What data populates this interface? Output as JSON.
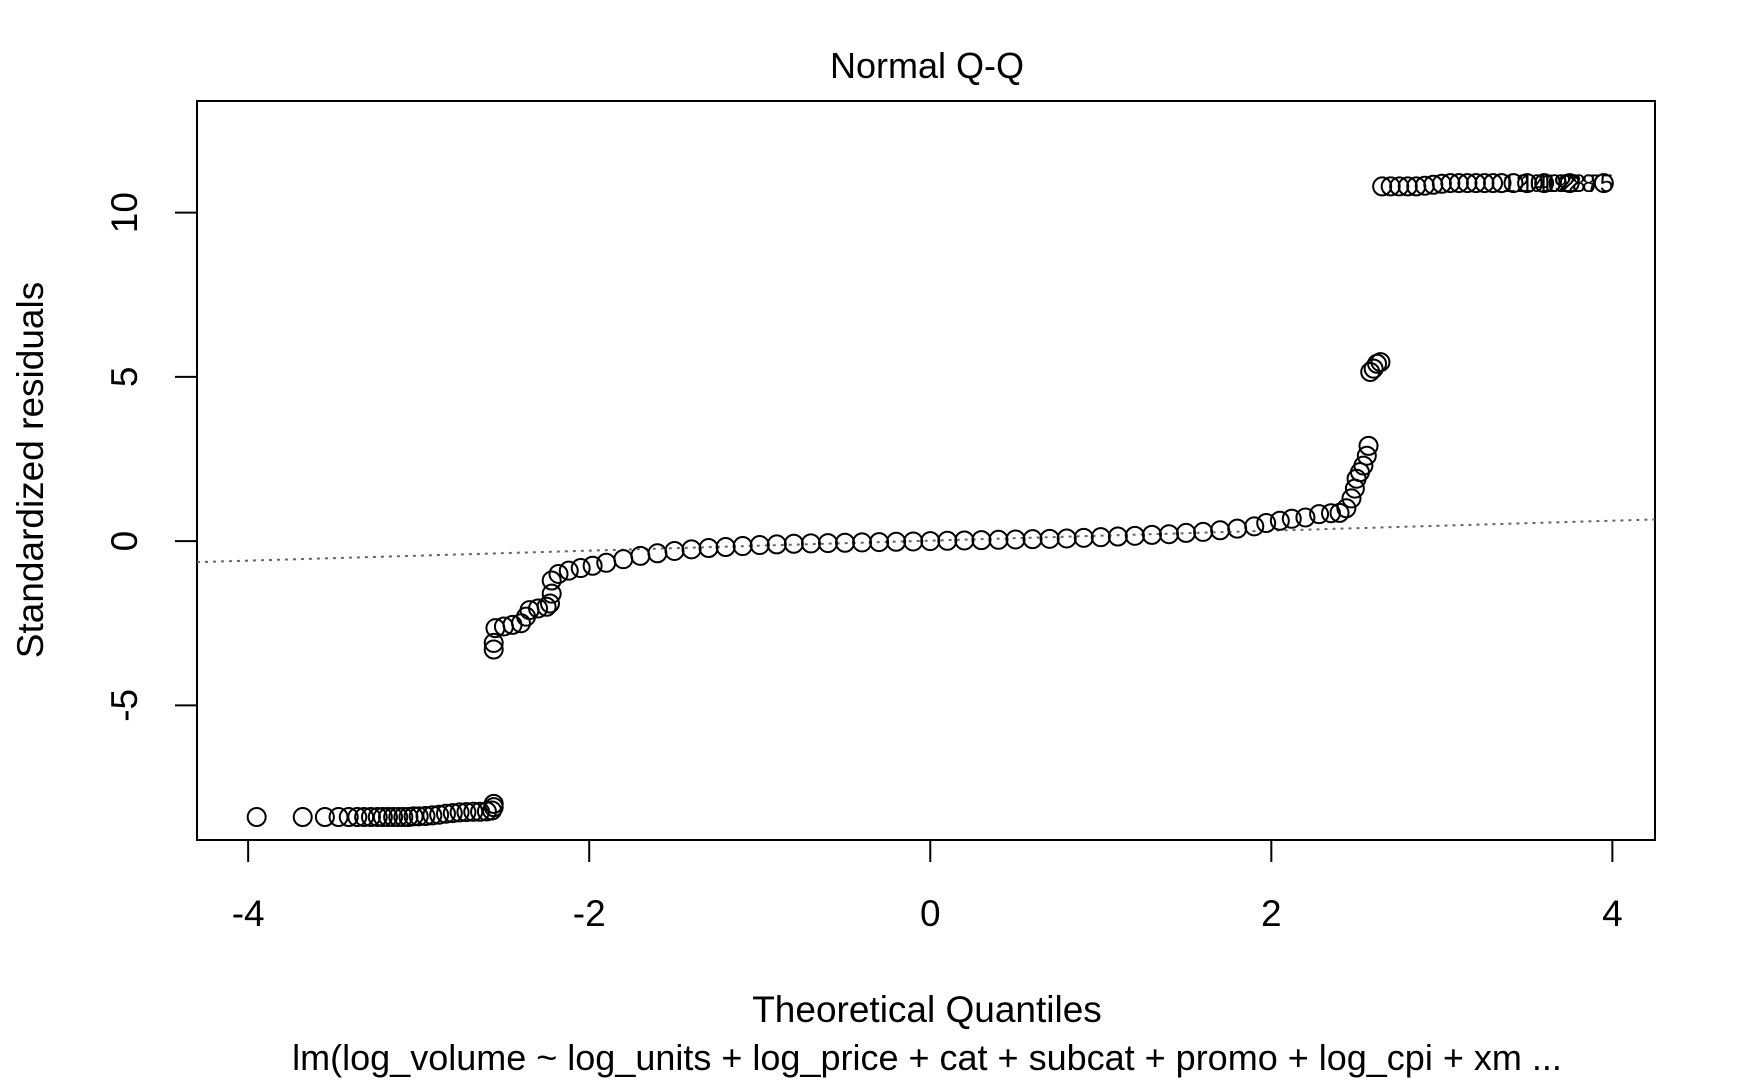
{
  "chart_data": {
    "type": "scatter",
    "title": "Normal Q-Q",
    "xlabel": "Theoretical Quantiles",
    "ylabel": "Standardized residuals",
    "subtitle": "lm(log_volume ~ log_units + log_price + cat + subcat + promo + log_cpi + xm ...",
    "xlim": [
      -4.3,
      4.25
    ],
    "ylim": [
      -9.1,
      13.4
    ],
    "x_ticks": [
      -4,
      -2,
      0,
      2,
      4
    ],
    "x_tick_labels": [
      "-4",
      "-2",
      "0",
      "2",
      "4"
    ],
    "y_ticks": [
      -5,
      0,
      5,
      10
    ],
    "y_tick_labels": [
      "-5",
      "0",
      "5",
      "10"
    ],
    "grid": false,
    "marker": "open-circle",
    "reference_line": {
      "style": "dotted",
      "color": "#666666",
      "points": [
        [
          -4.3,
          -0.64
        ],
        [
          4.25,
          0.66
        ]
      ]
    },
    "outlier_labels": [
      "1201",
      "1402",
      "1928",
      "2875"
    ],
    "points": [
      [
        -3.95,
        -8.4
      ],
      [
        -3.68,
        -8.4
      ],
      [
        -3.55,
        -8.4
      ],
      [
        -3.47,
        -8.4
      ],
      [
        -3.41,
        -8.4
      ],
      [
        -3.36,
        -8.4
      ],
      [
        -3.32,
        -8.4
      ],
      [
        -3.28,
        -8.4
      ],
      [
        -3.24,
        -8.4
      ],
      [
        -3.21,
        -8.4
      ],
      [
        -3.18,
        -8.4
      ],
      [
        -3.15,
        -8.4
      ],
      [
        -3.12,
        -8.4
      ],
      [
        -3.09,
        -8.4
      ],
      [
        -3.06,
        -8.4
      ],
      [
        -3.03,
        -8.38
      ],
      [
        -3.0,
        -8.38
      ],
      [
        -2.96,
        -8.37
      ],
      [
        -2.92,
        -8.35
      ],
      [
        -2.88,
        -8.33
      ],
      [
        -2.84,
        -8.3
      ],
      [
        -2.8,
        -8.28
      ],
      [
        -2.76,
        -8.26
      ],
      [
        -2.72,
        -8.25
      ],
      [
        -2.68,
        -8.24
      ],
      [
        -2.64,
        -8.24
      ],
      [
        -2.6,
        -8.23
      ],
      [
        -2.57,
        -8.2
      ],
      [
        -2.56,
        -8.1
      ],
      [
        -2.56,
        -8.0
      ],
      [
        -2.56,
        -3.3
      ],
      [
        -2.56,
        -3.1
      ],
      [
        -2.55,
        -2.65
      ],
      [
        -2.5,
        -2.6
      ],
      [
        -2.45,
        -2.55
      ],
      [
        -2.4,
        -2.5
      ],
      [
        -2.37,
        -2.3
      ],
      [
        -2.35,
        -2.1
      ],
      [
        -2.3,
        -2.05
      ],
      [
        -2.25,
        -2.0
      ],
      [
        -2.23,
        -1.9
      ],
      [
        -2.22,
        -1.6
      ],
      [
        -2.22,
        -1.2
      ],
      [
        -2.18,
        -1.0
      ],
      [
        -2.12,
        -0.9
      ],
      [
        -2.05,
        -0.82
      ],
      [
        -1.98,
        -0.75
      ],
      [
        -1.9,
        -0.66
      ],
      [
        -1.8,
        -0.55
      ],
      [
        -1.7,
        -0.45
      ],
      [
        -1.6,
        -0.37
      ],
      [
        -1.5,
        -0.3
      ],
      [
        -1.4,
        -0.25
      ],
      [
        -1.3,
        -0.21
      ],
      [
        -1.2,
        -0.18
      ],
      [
        -1.1,
        -0.15
      ],
      [
        -1.0,
        -0.12
      ],
      [
        -0.9,
        -0.1
      ],
      [
        -0.8,
        -0.08
      ],
      [
        -0.7,
        -0.07
      ],
      [
        -0.6,
        -0.06
      ],
      [
        -0.5,
        -0.05
      ],
      [
        -0.4,
        -0.04
      ],
      [
        -0.3,
        -0.03
      ],
      [
        -0.2,
        -0.02
      ],
      [
        -0.1,
        -0.01
      ],
      [
        0.0,
        0.0
      ],
      [
        0.1,
        0.01
      ],
      [
        0.2,
        0.02
      ],
      [
        0.3,
        0.03
      ],
      [
        0.4,
        0.04
      ],
      [
        0.5,
        0.05
      ],
      [
        0.6,
        0.06
      ],
      [
        0.7,
        0.07
      ],
      [
        0.8,
        0.08
      ],
      [
        0.9,
        0.1
      ],
      [
        1.0,
        0.12
      ],
      [
        1.1,
        0.14
      ],
      [
        1.2,
        0.16
      ],
      [
        1.3,
        0.19
      ],
      [
        1.4,
        0.21
      ],
      [
        1.5,
        0.25
      ],
      [
        1.6,
        0.28
      ],
      [
        1.7,
        0.33
      ],
      [
        1.8,
        0.38
      ],
      [
        1.9,
        0.45
      ],
      [
        1.97,
        0.55
      ],
      [
        2.05,
        0.62
      ],
      [
        2.12,
        0.68
      ],
      [
        2.2,
        0.72
      ],
      [
        2.28,
        0.82
      ],
      [
        2.35,
        0.85
      ],
      [
        2.4,
        0.86
      ],
      [
        2.44,
        1.0
      ],
      [
        2.47,
        1.3
      ],
      [
        2.49,
        1.6
      ],
      [
        2.5,
        1.9
      ],
      [
        2.52,
        2.1
      ],
      [
        2.54,
        2.3
      ],
      [
        2.56,
        2.6
      ],
      [
        2.57,
        2.9
      ],
      [
        2.58,
        5.15
      ],
      [
        2.6,
        5.25
      ],
      [
        2.62,
        5.4
      ],
      [
        2.64,
        5.45
      ],
      [
        2.65,
        10.8
      ],
      [
        2.7,
        10.8
      ],
      [
        2.75,
        10.8
      ],
      [
        2.8,
        10.8
      ],
      [
        2.85,
        10.8
      ],
      [
        2.9,
        10.82
      ],
      [
        2.95,
        10.85
      ],
      [
        3.0,
        10.88
      ],
      [
        3.05,
        10.9
      ],
      [
        3.1,
        10.9
      ],
      [
        3.15,
        10.9
      ],
      [
        3.2,
        10.9
      ],
      [
        3.25,
        10.9
      ],
      [
        3.3,
        10.9
      ],
      [
        3.35,
        10.9
      ],
      [
        3.42,
        10.9
      ],
      [
        3.5,
        10.9
      ],
      [
        3.6,
        10.9
      ],
      [
        3.75,
        10.9
      ],
      [
        3.95,
        10.9
      ]
    ]
  }
}
